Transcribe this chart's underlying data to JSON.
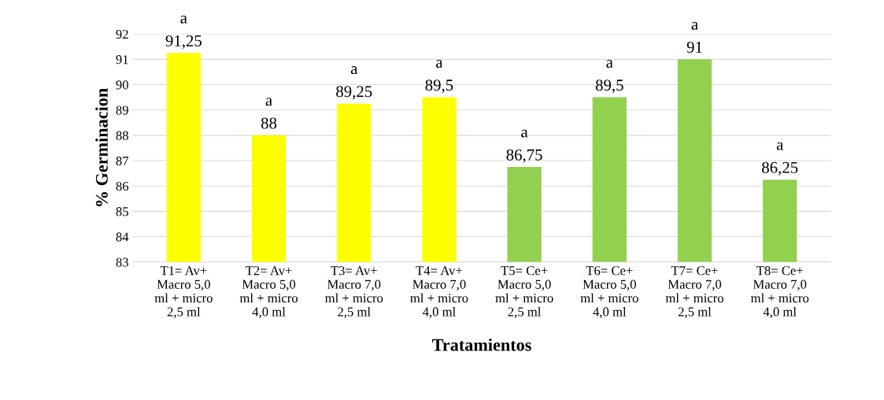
{
  "chart_data": {
    "type": "bar",
    "categories": [
      "T1= Av+\nMacro 5,0\nml + micro\n2,5 ml",
      "T2= Av+\nMacro 5,0\nml + micro\n4,0 ml",
      "T3= Av+\nMacro 7,0\nml + micro\n2,5 ml",
      "T4= Av+\nMacro 7,0\nml + micro\n4,0 ml",
      "T5= Ce+\nMacro 5,0\nml + micro\n2,5 ml",
      "T6= Ce+\nMacro 5,0\nml + micro\n4,0 ml",
      "T7= Ce+\nMacro 7,0\nml + micro\n2,5 ml",
      "T8= Ce+\nMacro 7,0\nml + micro\n4,0 ml"
    ],
    "values": [
      91.25,
      88,
      89.25,
      89.5,
      86.75,
      89.5,
      91,
      86.25
    ],
    "value_labels": [
      "91,25",
      "88",
      "89,25",
      "89,5",
      "86,75",
      "89,5",
      "91",
      "86,25"
    ],
    "colors": [
      "#ffff00",
      "#ffff00",
      "#ffff00",
      "#ffff00",
      "#92d050",
      "#92d050",
      "#92d050",
      "#92d050"
    ],
    "xlabel": "Tratamientos",
    "ylabel": "% Germinacion",
    "ylim": [
      83,
      92
    ],
    "yticks": [
      83,
      84,
      85,
      86,
      87,
      88,
      89,
      90,
      91,
      92
    ],
    "grid": "y",
    "annotations": [
      {
        "text": "a",
        "x": "T1= Av+\nMacro 5,0\nml + micro\n2,5 ml",
        "y": 91.25
      },
      {
        "text": "a",
        "x": "T2= Av+\nMacro 5,0\nml + micro\n4,0 ml",
        "y": 88
      },
      {
        "text": "a",
        "x": "T3= Av+\nMacro 7,0\nml + micro\n2,5 ml",
        "y": 89.25
      },
      {
        "text": "a",
        "x": "T4= Av+\nMacro 7,0\nml + micro\n4,0 ml",
        "y": 89.5
      },
      {
        "text": "a",
        "x": "T5= Ce+\nMacro 5,0\nml + micro\n2,5 ml",
        "y": 86.75
      },
      {
        "text": "a",
        "x": "T6= Ce+\nMacro 5,0\nml + micro\n4,0 ml",
        "y": 89.5
      },
      {
        "text": "a",
        "x": "T7= Ce+\nMacro 7,0\nml + micro\n2,5 ml",
        "y": 91
      },
      {
        "text": "a",
        "x": "T8= Ce+\nMacro 7,0\nml + micro\n4,0 ml",
        "y": 86.25
      }
    ]
  }
}
